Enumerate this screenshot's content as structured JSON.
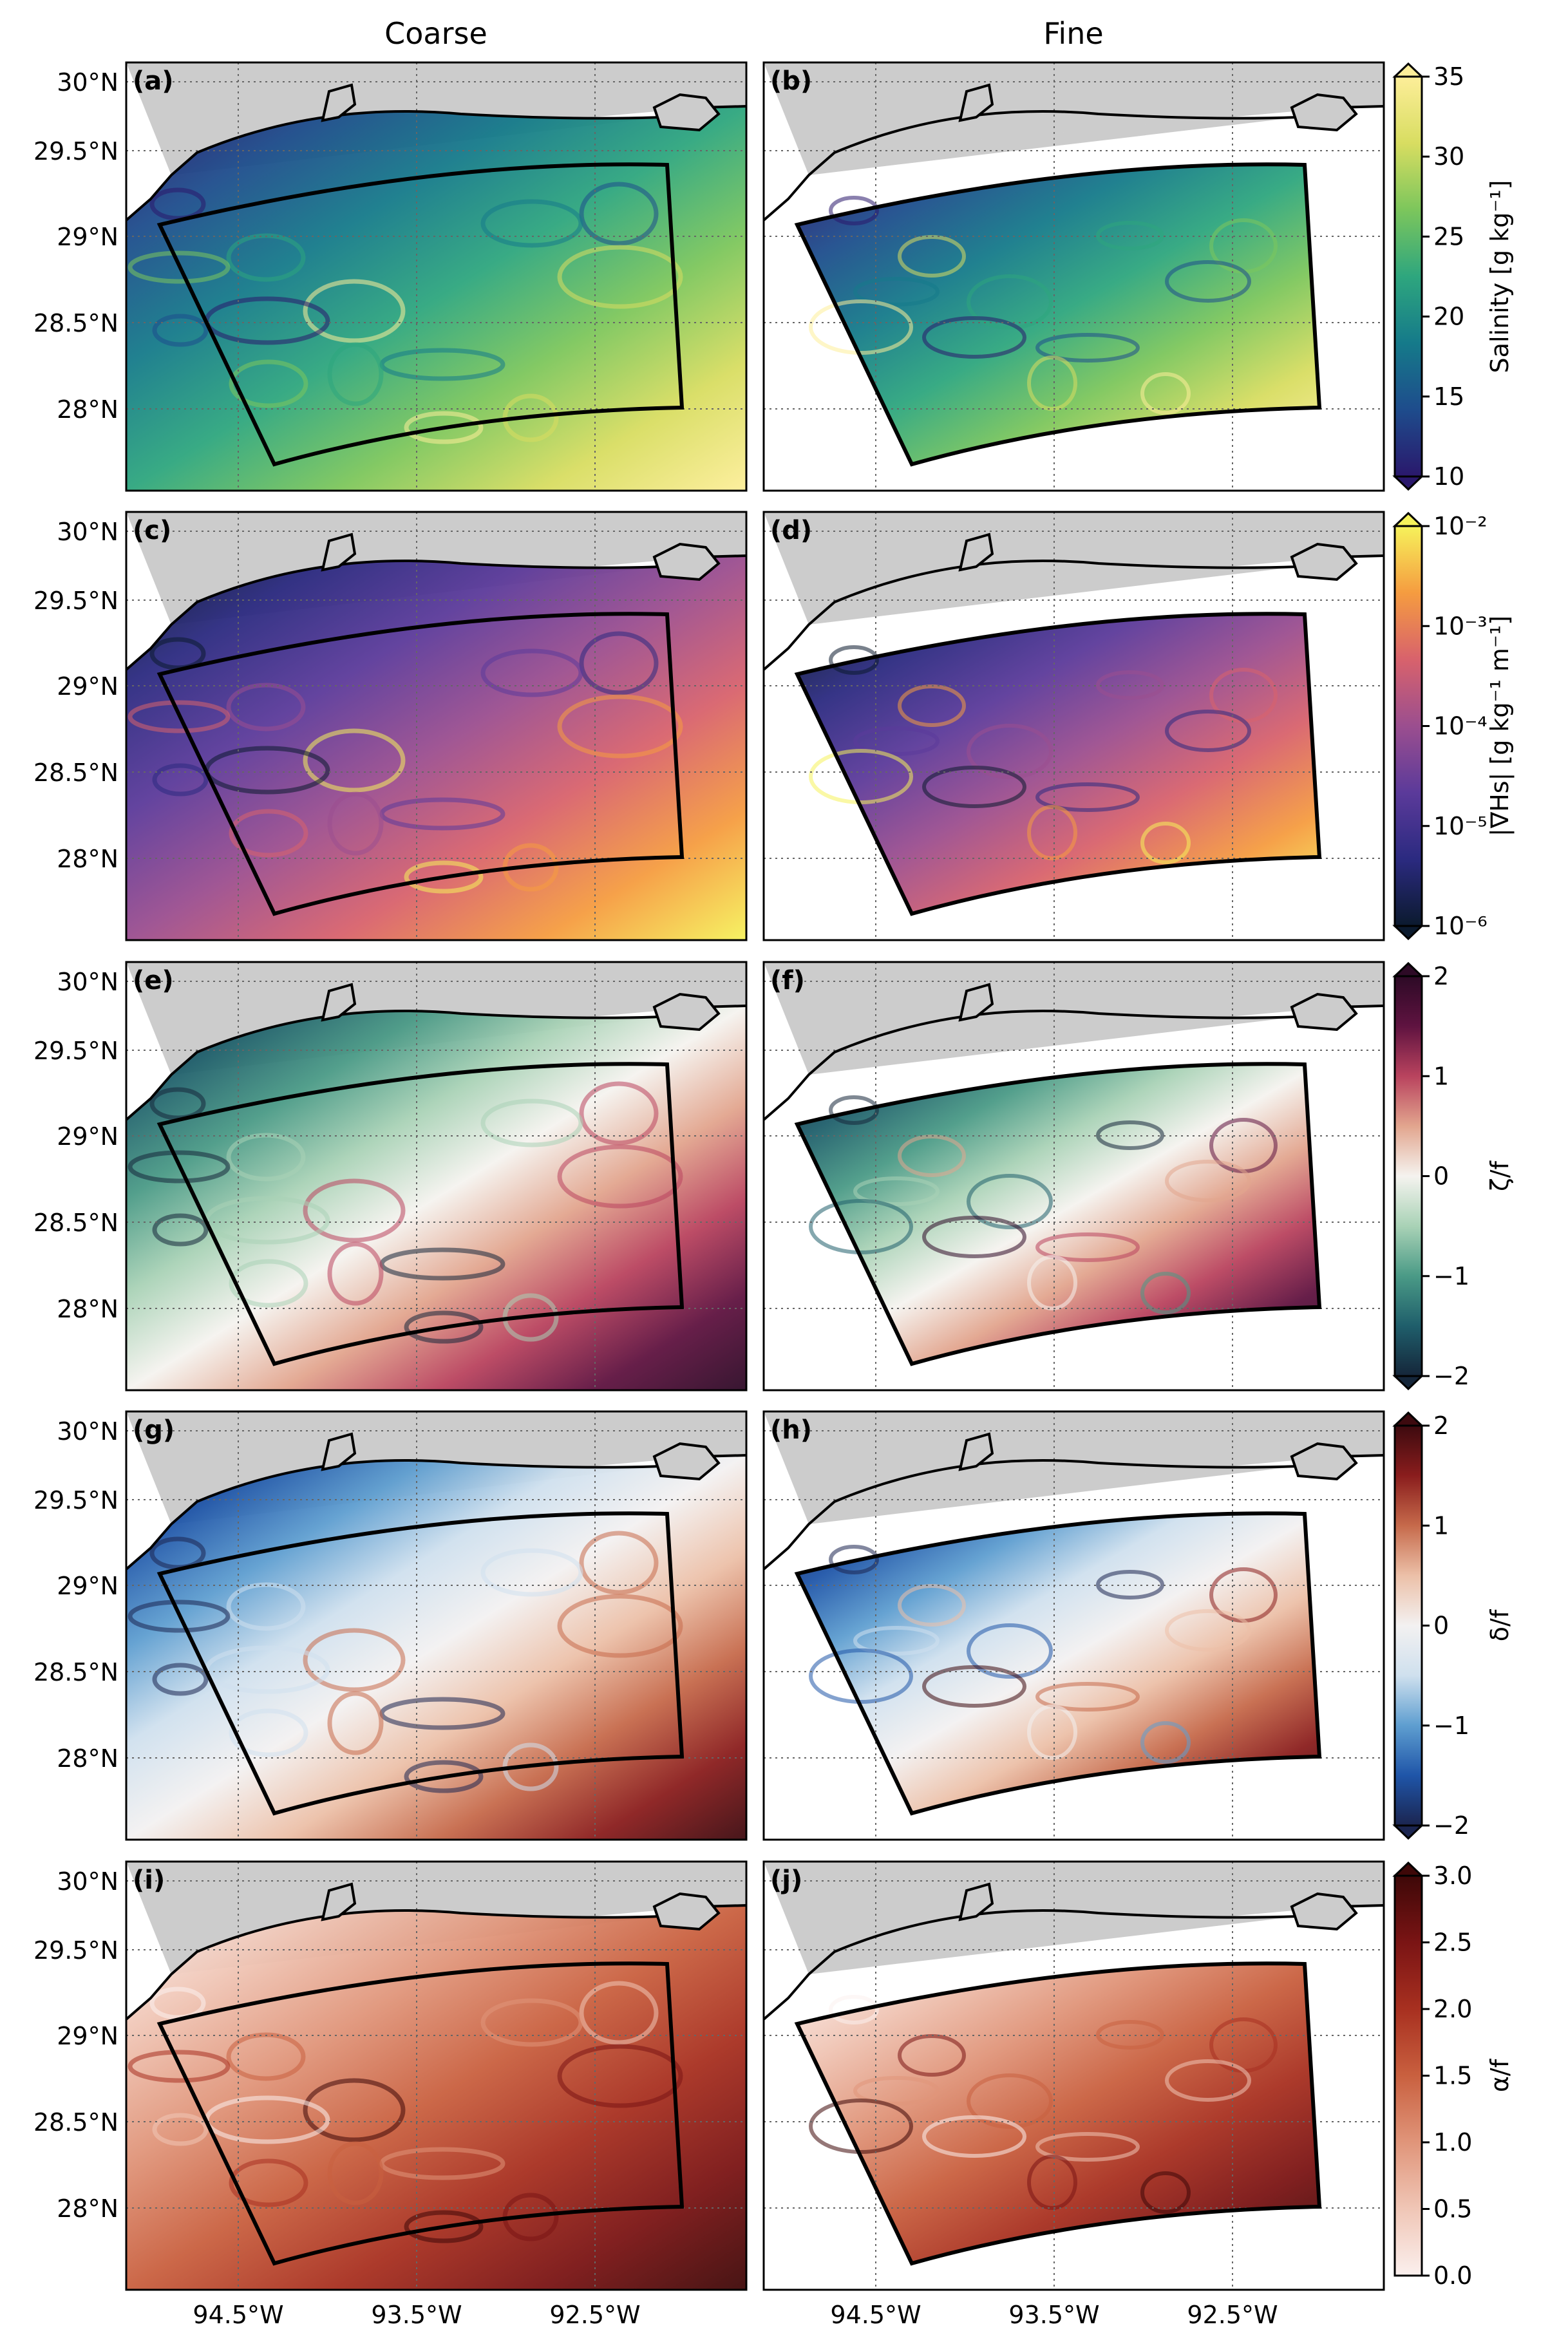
{
  "figure": {
    "col_titles": [
      "Coarse",
      "Fine"
    ],
    "lat_ticks": [
      "30°N",
      "29.5°N",
      "29°N",
      "28.5°N",
      "28°N"
    ],
    "lon_ticks": [
      "94.5°W",
      "93.5°W",
      "92.5°W"
    ],
    "rows": [
      {
        "labels": [
          "(a)",
          "(b)"
        ],
        "field": "salinity",
        "colorbar": {
          "label": "Salinity [g kg⁻¹]",
          "ticks": [
            "35",
            "30",
            "25",
            "20",
            "15",
            "10"
          ],
          "extend": "both",
          "colors": [
            "#2a186c",
            "#1e4c8c",
            "#157a8a",
            "#2ea67e",
            "#7cc65c",
            "#d8dd61",
            "#fdee99"
          ]
        }
      },
      {
        "labels": [
          "(c)",
          "(d)"
        ],
        "field": "salinity-gradient",
        "colorbar": {
          "label": "|∇Hs| [g kg⁻¹ m⁻¹]",
          "ticks": [
            "10⁻²",
            "10⁻³",
            "10⁻⁴",
            "10⁻⁵",
            "10⁻⁶"
          ],
          "extend": "both",
          "colors": [
            "#0b1a2e",
            "#2b2a80",
            "#5b3a9a",
            "#9b4e8f",
            "#d8626c",
            "#f59c40",
            "#f6f25b"
          ]
        }
      },
      {
        "labels": [
          "(e)",
          "(f)"
        ],
        "field": "vorticity",
        "colorbar": {
          "label": "ζ/f",
          "ticks": [
            "2",
            "1",
            "0",
            "−1",
            "−2"
          ],
          "extend": "both",
          "colors": [
            "#15263a",
            "#1f5e6b",
            "#4a9a86",
            "#a9d2b6",
            "#f5f3ef",
            "#e2a58e",
            "#b9435e",
            "#5f1340",
            "#2d0a26"
          ]
        }
      },
      {
        "labels": [
          "(g)",
          "(h)"
        ],
        "field": "divergence",
        "colorbar": {
          "label": "δ/f",
          "ticks": [
            "2",
            "1",
            "0",
            "−1",
            "−2"
          ],
          "extend": "both",
          "colors": [
            "#1b2550",
            "#1f55a8",
            "#5e9ed0",
            "#cfe0ee",
            "#f3f1f1",
            "#ecc0a8",
            "#c66a4b",
            "#8a1d1d",
            "#3d0a0f"
          ]
        }
      },
      {
        "labels": [
          "(i)",
          "(j)"
        ],
        "field": "strain",
        "colorbar": {
          "label": "α/f",
          "ticks": [
            "3.0",
            "2.5",
            "2.0",
            "1.5",
            "1.0",
            "0.5",
            "0.0"
          ],
          "extend": "max",
          "colors": [
            "#fbf0ee",
            "#f0c6b6",
            "#e0957a",
            "#c9603f",
            "#a83020",
            "#7a1414",
            "#3e0808"
          ]
        }
      }
    ]
  }
}
